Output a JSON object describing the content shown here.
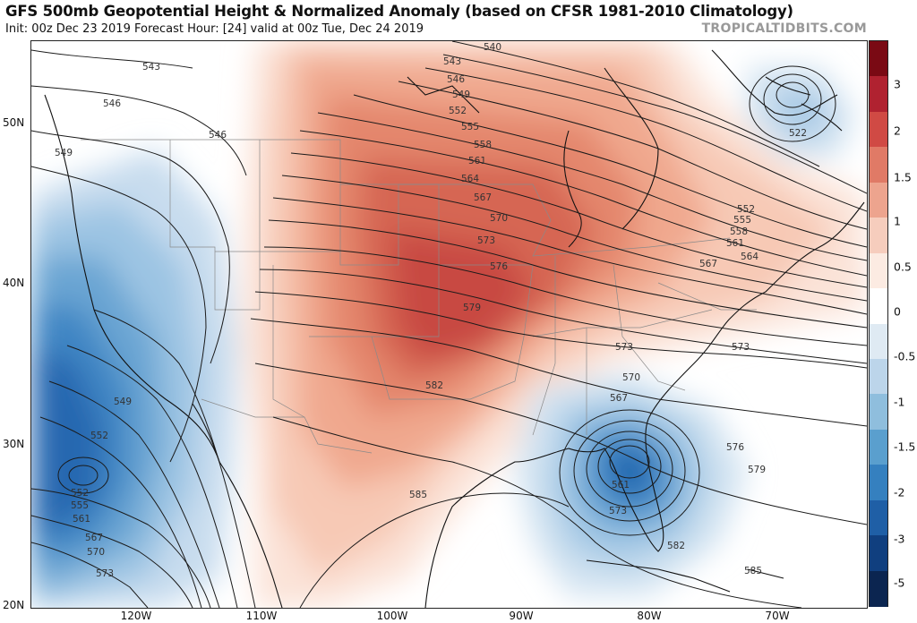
{
  "header": {
    "title": "GFS 500mb Geopotential Height & Normalized Anomaly (based on CFSR 1981-2010 Climatology)",
    "subtitle": "Init: 00z Dec 23 2019   Forecast Hour: [24]   valid at 00z Tue, Dec 24 2019",
    "brand": "TROPICALTIDBITS.COM"
  },
  "axes": {
    "lat_labels": [
      "50N",
      "40N",
      "30N",
      "20N"
    ],
    "lon_labels": [
      "120W",
      "110W",
      "100W",
      "90W",
      "80W",
      "70W"
    ]
  },
  "colorbar": {
    "labels": [
      "3",
      "2",
      "1.5",
      "1",
      "0.5",
      "0",
      "-0.5",
      "-1",
      "-1.5",
      "-2",
      "-3",
      "-5"
    ],
    "colors": [
      "#7a0a14",
      "#b02230",
      "#d04a44",
      "#e07a66",
      "#eda48e",
      "#f6cdbd",
      "#fcebe2",
      "#ffffff",
      "#dfeaf3",
      "#bcd5ea",
      "#8fbedd",
      "#5a9fce",
      "#3580bf",
      "#1f5fa6",
      "#103f7f",
      "#0b2550"
    ]
  },
  "contours": {
    "labels": [
      "540",
      "543",
      "546",
      "549",
      "552",
      "555",
      "558",
      "561",
      "564",
      "567",
      "570",
      "573",
      "576",
      "579",
      "582",
      "585",
      "522",
      "552",
      "555",
      "558",
      "561",
      "564",
      "567",
      "573",
      "573",
      "570",
      "567",
      "561",
      "573",
      "576",
      "579",
      "582",
      "585",
      "543",
      "546",
      "546",
      "549",
      "549",
      "552",
      "552",
      "555",
      "561",
      "567",
      "570",
      "573"
    ]
  }
}
